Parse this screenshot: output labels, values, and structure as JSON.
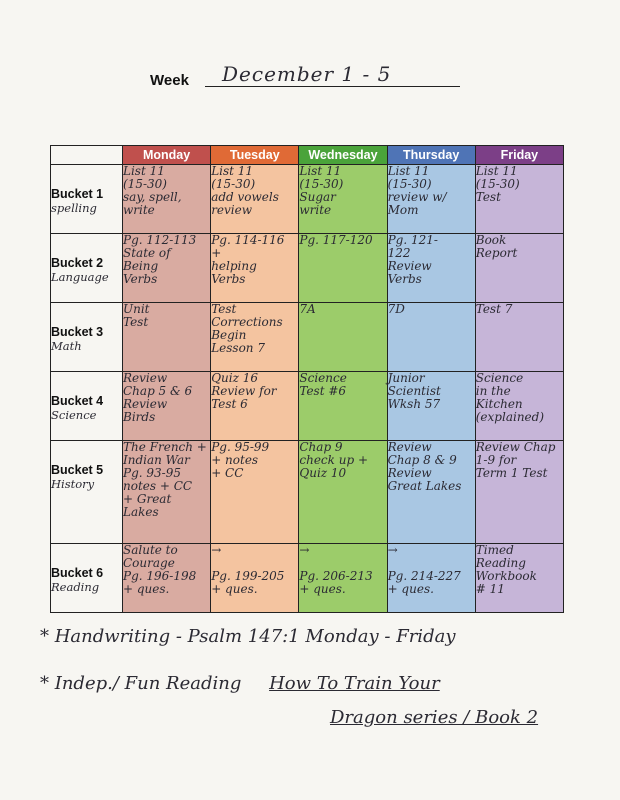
{
  "header": {
    "week_label": "Week",
    "week_value": "December 1 - 5"
  },
  "days": [
    "Monday",
    "Tuesday",
    "Wednesday",
    "Thursday",
    "Friday"
  ],
  "rows": [
    {
      "bucket": "Bucket 1",
      "subject": "spelling",
      "cells": [
        "List 11\n(15-30)\nsay, spell,\nwrite",
        "List 11\n(15-30)\nadd vowels\nreview",
        "List 11\n(15-30)\nSugar\nwrite",
        "List 11\n(15-30)\nreview w/\nMom",
        "List 11\n(15-30)\nTest"
      ]
    },
    {
      "bucket": "Bucket 2",
      "subject": "Language",
      "cells": [
        "Pg. 112-113\nState of\nBeing\nVerbs",
        "Pg. 114-116\n+\nhelping\nVerbs",
        "Pg. 117-120",
        "Pg. 121-\n122\nReview\nVerbs",
        "Book\nReport"
      ]
    },
    {
      "bucket": "Bucket 3",
      "subject": "Math",
      "cells": [
        "Unit\nTest",
        "Test\nCorrections\nBegin\nLesson 7",
        "7A",
        "7D",
        "Test 7"
      ]
    },
    {
      "bucket": "Bucket 4",
      "subject": "Science",
      "cells": [
        "Review\nChap 5 & 6\nReview\nBirds",
        "Quiz 16\nReview for\nTest 6",
        "Science\nTest #6",
        "Junior\nScientist\nWksh 57",
        "Science\nin the\nKitchen\n(explained)"
      ]
    },
    {
      "bucket": "Bucket 5",
      "subject": "History",
      "cells": [
        "The French +\nIndian War\nPg. 93-95\nnotes + CC\n+ Great Lakes",
        "Pg. 95-99\n+ notes\n+ CC",
        "Chap 9\ncheck up +\nQuiz 10",
        "Review\nChap 8 & 9\nReview\nGreat Lakes",
        "Review Chap\n1-9 for\nTerm 1 Test"
      ]
    },
    {
      "bucket": "Bucket 6",
      "subject": "Reading",
      "cells": [
        "Salute to\nCourage\nPg. 196-198\n+ ques.",
        "→\n\nPg. 199-205\n+ ques.",
        "→\n\nPg. 206-213\n+ ques.",
        "→\n\nPg. 214-227\n+ ques.",
        "Timed\nReading\nWorkbook\n# 11"
      ]
    }
  ],
  "notes": {
    "line1": "* Handwriting - Psalm 147:1   Monday - Friday",
    "line2_prefix": "* Indep./ Fun Reading",
    "line2_title": "How To Train Your",
    "line3": "Dragon series / Book 2"
  }
}
